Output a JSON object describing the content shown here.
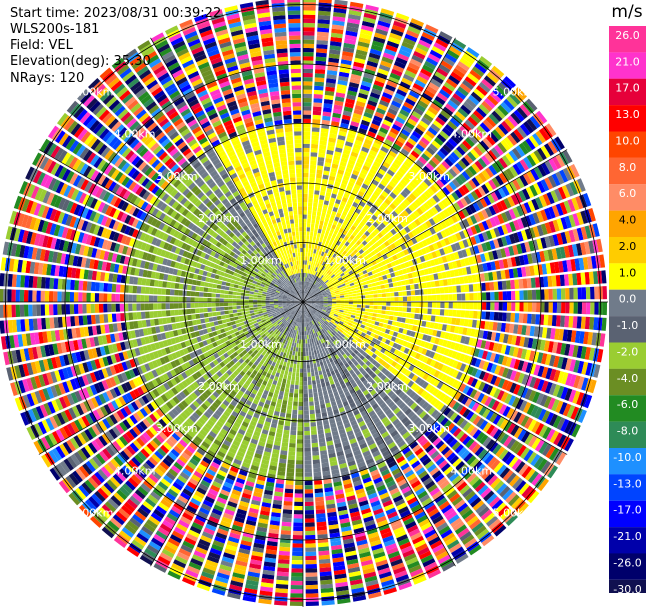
{
  "header": {
    "start_time": "Start time: 2023/08/31 00:39:22",
    "instrument": "WLS200s-181",
    "field": "Field: VEL",
    "elevation": "Elevation(deg): 35.30",
    "nrays": "NRays: 120"
  },
  "colorbar": {
    "unit": "m/s",
    "ticks": [
      "26.0",
      "21.0",
      "17.0",
      "13.0",
      "10.0",
      "8.0",
      "6.0",
      "4.0",
      "2.0",
      "1.0",
      "0.0",
      "-1.0",
      "-2.0",
      "-4.0",
      "-6.0",
      "-8.0",
      "-10.0",
      "-13.0",
      "-17.0",
      "-21.0",
      "-26.0",
      "-30.0"
    ],
    "colors": [
      "#ff3399",
      "#ff33cc",
      "#e6003a",
      "#ff0000",
      "#ff4500",
      "#ff6633",
      "#ff8c66",
      "#ffa500",
      "#ffcc00",
      "#ffff00",
      "#707b8a",
      "#5a6272",
      "#9acd32",
      "#6b8e23",
      "#228b22",
      "#2e8b57",
      "#1e90ff",
      "#0044ff",
      "#0000ff",
      "#0000aa",
      "#00006b",
      "#101050"
    ]
  },
  "chart_data": {
    "type": "heatmap",
    "projection": "polar-ppi",
    "field": "VEL",
    "nrays": 120,
    "range_rings_km": [
      1.0,
      2.0,
      3.0,
      4.0,
      5.0
    ],
    "range_ring_label": "km",
    "value_range": [
      -30.0,
      26.0
    ],
    "clean_region_max_km": 3.0,
    "pattern": {
      "north_east_sector": "positive (yellow, ~2.0)",
      "south_west_sector": "negative (green, ~-2.0 to -4.0)",
      "near_center": "near zero (grey)",
      "beyond_3km": "noisy, full color range"
    }
  }
}
